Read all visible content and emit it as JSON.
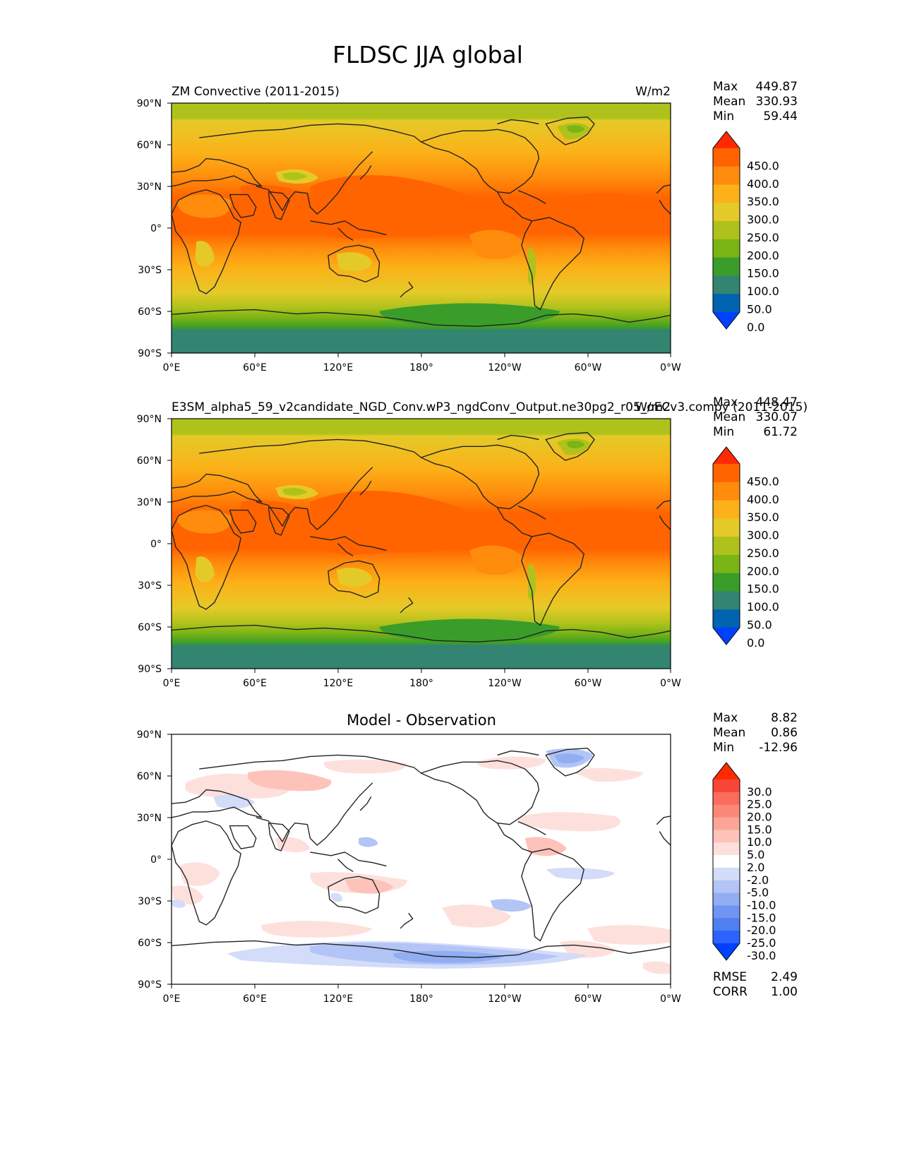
{
  "figure_title": "FLDSC JJA global",
  "colors": {
    "contour_levels_main": [
      "#0040ff",
      "#0064b0",
      "#338471",
      "#3a9d2a",
      "#7ab415",
      "#afc21c",
      "#e4ca28",
      "#fcb118",
      "#ff8c0c",
      "#ff6400",
      "#ff2a00"
    ],
    "contour_levels_diff": [
      "#0040ff",
      "#2c63ff",
      "#4f7ff0",
      "#6f95f2",
      "#91aef3",
      "#b3c4f6",
      "#d3dcf9",
      "#ffffff",
      "#fde0dc",
      "#fdc3bb",
      "#fca596",
      "#fb8877",
      "#fa6c5c",
      "#f74638",
      "#ff2a00"
    ]
  },
  "chart_data": [
    {
      "type": "heatmap",
      "panel": "test",
      "title_left": "ZM Convective (2011-2015)",
      "title_right": "W/m2",
      "stats": {
        "max_label": "Max",
        "max": "449.87",
        "mean_label": "Mean",
        "mean": "330.93",
        "min_label": "Min",
        "min": "59.44"
      },
      "colorbar_ticks": [
        "450.0",
        "400.0",
        "350.0",
        "300.0",
        "250.0",
        "200.0",
        "150.0",
        "100.0",
        "50.0",
        "0.0"
      ],
      "xticks": [
        "0°E",
        "60°E",
        "120°E",
        "180°",
        "120°W",
        "60°W",
        "0°W"
      ],
      "yticks": [
        "90°N",
        "60°N",
        "30°N",
        "0°",
        "30°S",
        "60°S",
        "90°S"
      ],
      "xlim": [
        0,
        360
      ],
      "ylim": [
        -90,
        90
      ]
    },
    {
      "type": "heatmap",
      "panel": "reference",
      "title_left": "E3SM_alpha5_59_v2candidate_NGD_Conv.wP3_ngdConv_Output.ne30pg2_r05_oECv3.compy (2011-2015)",
      "title_right": "W/m2",
      "stats": {
        "max_label": "Max",
        "max": "448.47",
        "mean_label": "Mean",
        "mean": "330.07",
        "min_label": "Min",
        "min": "61.72"
      },
      "colorbar_ticks": [
        "450.0",
        "400.0",
        "350.0",
        "300.0",
        "250.0",
        "200.0",
        "150.0",
        "100.0",
        "50.0",
        "0.0"
      ],
      "xticks": [
        "0°E",
        "60°E",
        "120°E",
        "180°",
        "120°W",
        "60°W",
        "0°W"
      ],
      "yticks": [
        "90°N",
        "60°N",
        "30°N",
        "0°",
        "30°S",
        "60°S",
        "90°S"
      ],
      "xlim": [
        0,
        360
      ],
      "ylim": [
        -90,
        90
      ]
    },
    {
      "type": "heatmap",
      "panel": "difference",
      "title_center": "Model - Observation",
      "stats": {
        "max_label": "Max",
        "max": "8.82",
        "mean_label": "Mean",
        "mean": "0.86",
        "min_label": "Min",
        "min": "-12.96"
      },
      "colorbar_ticks": [
        "30.0",
        "25.0",
        "20.0",
        "15.0",
        "10.0",
        "5.0",
        "2.0",
        "-2.0",
        "-5.0",
        "-10.0",
        "-15.0",
        "-20.0",
        "-25.0",
        "-30.0"
      ],
      "rmse_label": "RMSE",
      "rmse": "2.49",
      "corr_label": "CORR",
      "corr": "1.00",
      "xticks": [
        "0°E",
        "60°E",
        "120°E",
        "180°",
        "120°W",
        "60°W",
        "0°W"
      ],
      "yticks": [
        "90°N",
        "60°N",
        "30°N",
        "0°",
        "30°S",
        "60°S",
        "90°S"
      ],
      "xlim": [
        0,
        360
      ],
      "ylim": [
        -90,
        90
      ]
    }
  ]
}
